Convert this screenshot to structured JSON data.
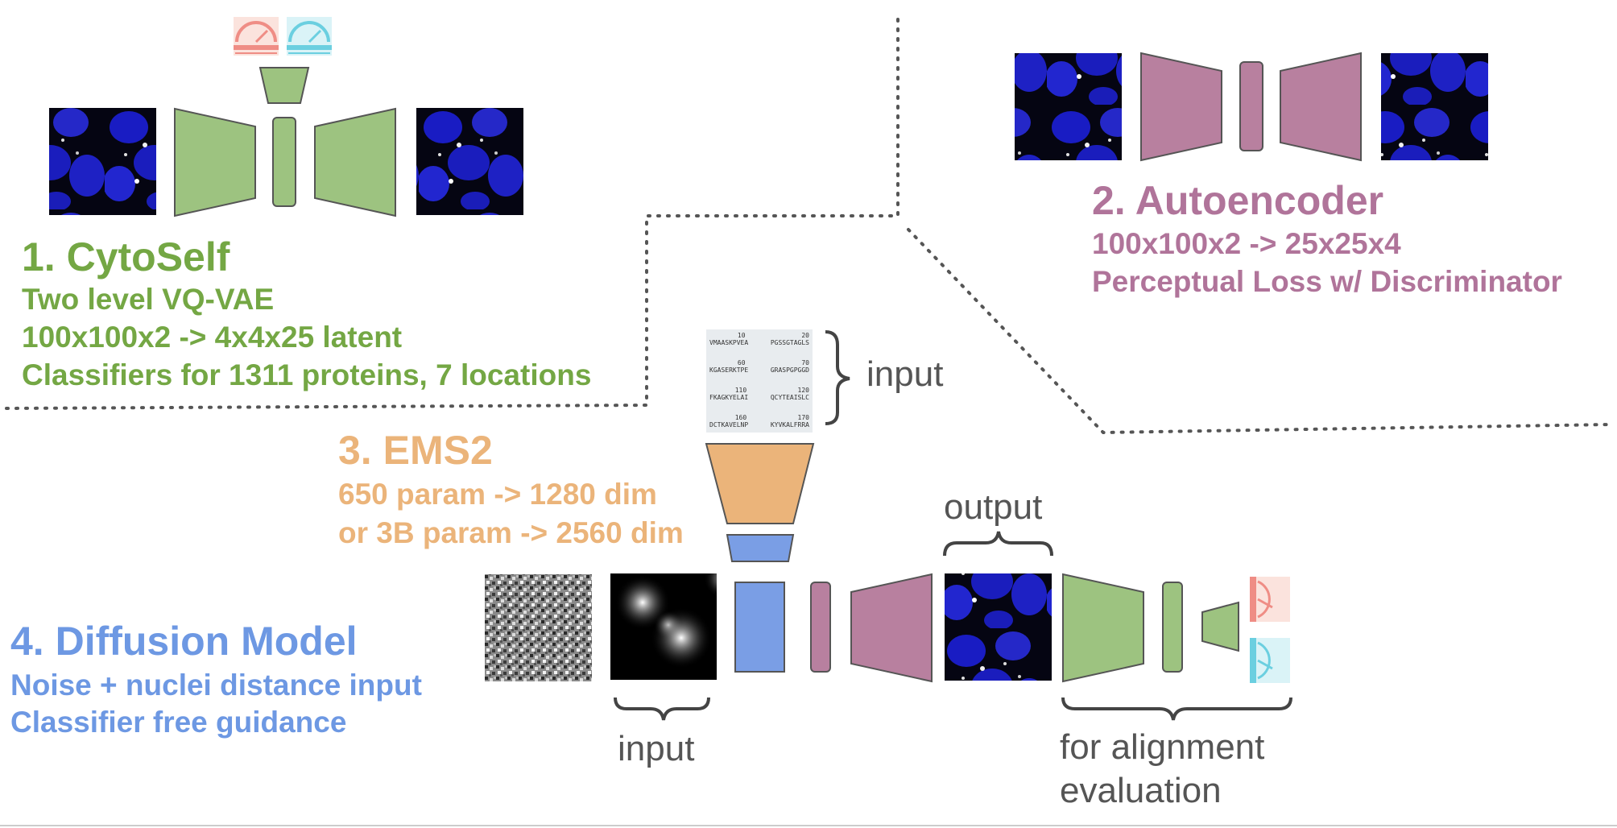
{
  "colors": {
    "cytoself": "#74a744",
    "autoencoder": "#b0749a",
    "ems2": "#ebb47a",
    "diffusion": "#6d98e3",
    "label_gray": "#555555"
  },
  "sections": {
    "cytoself": {
      "title": "1. CytoSelf",
      "lines": [
        "Two level VQ-VAE",
        "100x100x2 -> 4x4x25 latent",
        "Classifiers for 1311 proteins, 7 locations"
      ]
    },
    "autoencoder": {
      "title": "2. Autoencoder",
      "lines": [
        "100x100x2 -> 25x25x4",
        "Perceptual Loss w/ Discriminator"
      ]
    },
    "ems2": {
      "title": "3. EMS2",
      "lines": [
        "650 param -> 1280 dim",
        "or 3B param -> 2560 dim"
      ]
    },
    "diffusion": {
      "title": "4. Diffusion Model",
      "lines": [
        "Noise + nuclei distance input",
        "Classifier free guidance"
      ]
    }
  },
  "labels": {
    "seq_input": "input",
    "output": "output",
    "diffusion_input": "input",
    "alignment_1": "for alignment",
    "alignment_2": "evaluation"
  },
  "sequence": {
    "rows": [
      {
        "n1": "10",
        "n2": "20",
        "s1": "VMAASKPVEA",
        "s2": "PGSSGTAGLS"
      },
      {
        "n1": "60",
        "n2": "70",
        "s1": "KGASERKTPE",
        "s2": "GRASPGPGGD"
      },
      {
        "n1": "110",
        "n2": "120",
        "s1": "FKAGKYELAI",
        "s2": "QCYTEAISLC"
      },
      {
        "n1": "160",
        "n2": "170",
        "s1": "DCTKAVELNP",
        "s2": "KYVKALFRRA"
      }
    ]
  },
  "icons": [
    "gauge-red-icon",
    "gauge-cyan-icon",
    "clock-red-icon",
    "clock-cyan-icon"
  ]
}
